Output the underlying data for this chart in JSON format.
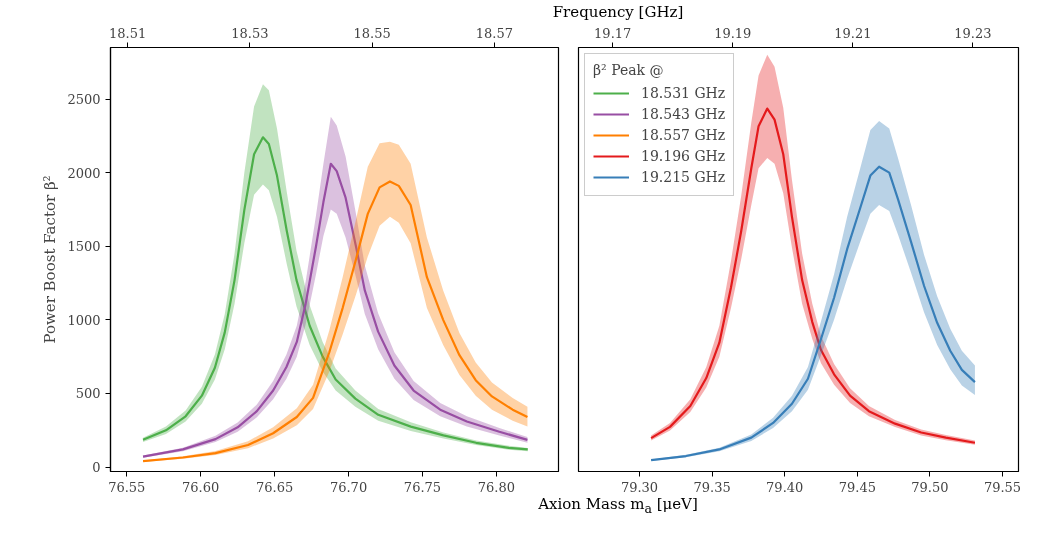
{
  "chart_data": [
    {
      "type": "line",
      "xlabel": "Axion Mass m$_{a}$ [μeV]",
      "x2label": "Frequency [GHz]",
      "ylabel": "Power Boost Factor β²",
      "legend": "right",
      "xlim": [
        76.539,
        76.842
      ],
      "xticks": [
        76.55,
        {
          "value": 76.6,
          "label": "76.60"
        },
        76.65,
        {
          "value": 76.7,
          "label": "76.70"
        },
        76.75,
        {
          "value": 76.8,
          "label": "76.80"
        }
      ],
      "x2lim": [
        18.5072,
        18.5805
      ],
      "x2ticks": [
        18.51,
        18.53,
        18.55,
        18.57
      ],
      "ylim": [
        -30,
        2850
      ],
      "yticks": [
        0,
        500,
        1000,
        1500,
        2000,
        2500
      ],
      "series": [
        {
          "name": "18.531 GHz",
          "color": "#4daf4a",
          "x": [
            76.561,
            76.5765,
            76.5898,
            76.6008,
            76.6096,
            76.6163,
            76.6229,
            76.6295,
            76.6361,
            76.6421,
            76.6461,
            76.6516,
            76.6582,
            76.6648,
            76.6737,
            76.6825,
            76.6913,
            76.7046,
            76.7201,
            76.7421,
            76.7642,
            76.7863,
            76.8084,
            76.8212
          ],
          "values": [
            185,
            250,
            345,
            485,
            675,
            915,
            1270,
            1745,
            2125,
            2240,
            2195,
            1980,
            1605,
            1270,
            960,
            750,
            595,
            465,
            355,
            275,
            215,
            165,
            130,
            120
          ],
          "upper": [
            200,
            275,
            385,
            545,
            765,
            1040,
            1450,
            2000,
            2450,
            2600,
            2560,
            2300,
            1870,
            1470,
            1100,
            850,
            670,
            520,
            395,
            305,
            235,
            180,
            145,
            130
          ],
          "lower": [
            170,
            225,
            310,
            430,
            595,
            800,
            1110,
            1520,
            1850,
            1920,
            1880,
            1700,
            1380,
            1090,
            830,
            650,
            520,
            410,
            315,
            245,
            195,
            150,
            118,
            108
          ]
        },
        {
          "name": "18.543 GHz",
          "color": "#984ea3",
          "x": [
            76.561,
            76.588,
            76.61,
            76.625,
            76.638,
            76.649,
            76.658,
            76.665,
            76.671,
            76.678,
            76.683,
            76.688,
            76.692,
            76.698,
            76.705,
            76.711,
            76.72,
            76.731,
            76.744,
            76.762,
            76.78,
            76.802,
            76.821
          ],
          "values": [
            71,
            120,
            190,
            270,
            380,
            520,
            680,
            850,
            1110,
            1500,
            1800,
            2060,
            2010,
            1830,
            1500,
            1200,
            920,
            690,
            520,
            390,
            310,
            240,
            185
          ],
          "upper": [
            78,
            132,
            212,
            302,
            425,
            585,
            765,
            960,
            1260,
            1710,
            2060,
            2380,
            2320,
            2110,
            1720,
            1370,
            1045,
            780,
            585,
            435,
            345,
            265,
            205
          ],
          "lower": [
            64,
            108,
            170,
            240,
            338,
            460,
            600,
            750,
            970,
            1310,
            1570,
            1750,
            1720,
            1560,
            1290,
            1040,
            800,
            600,
            455,
            345,
            275,
            215,
            165
          ]
        },
        {
          "name": "18.557 GHz",
          "color": "#ff7f00",
          "x": [
            76.561,
            76.588,
            76.61,
            76.632,
            76.649,
            76.665,
            76.676,
            76.687,
            76.696,
            76.705,
            76.713,
            76.721,
            76.728,
            76.734,
            76.742,
            76.753,
            76.764,
            76.775,
            76.786,
            76.797,
            76.811,
            76.821
          ],
          "values": [
            40,
            65,
            95,
            150,
            230,
            340,
            470,
            780,
            1080,
            1410,
            1720,
            1900,
            1940,
            1910,
            1780,
            1290,
            1000,
            760,
            590,
            480,
            390,
            340
          ],
          "upper": [
            45,
            74,
            110,
            175,
            270,
            400,
            560,
            930,
            1290,
            1680,
            2040,
            2200,
            2210,
            2190,
            2060,
            1560,
            1200,
            910,
            710,
            575,
            470,
            410
          ],
          "lower": [
            35,
            56,
            82,
            128,
            195,
            285,
            395,
            650,
            900,
            1170,
            1430,
            1640,
            1700,
            1660,
            1520,
            1080,
            830,
            625,
            485,
            390,
            315,
            275
          ]
        }
      ]
    },
    {
      "type": "line",
      "tick_labels": "x",
      "legend": "top left",
      "legend_title": "β² Peak @",
      "xlim": [
        79.258,
        79.561
      ],
      "xticks": [
        {
          "value": 79.3,
          "label": "79.30"
        },
        79.35,
        {
          "value": 79.4,
          "label": "79.40"
        },
        79.45,
        {
          "value": 79.5,
          "label": "79.50"
        },
        79.55
      ],
      "x2lim": [
        19.1643,
        19.2376
      ],
      "x2ticks": [
        19.17,
        19.19,
        19.21,
        19.23
      ],
      "ylim": [
        -30,
        2850
      ],
      "series": [
        {
          "name": "19.196 GHz",
          "color": "#e41a1c",
          "x": [
            79.308,
            79.321,
            79.335,
            79.346,
            79.355,
            79.363,
            79.37,
            79.377,
            79.382,
            79.388,
            79.393,
            79.399,
            79.405,
            79.412,
            79.419,
            79.425,
            79.434,
            79.445,
            79.458,
            79.476,
            79.494,
            79.511,
            79.531
          ],
          "values": [
            197,
            273,
            415,
            605,
            845,
            1220,
            1600,
            2030,
            2315,
            2435,
            2360,
            2125,
            1700,
            1270,
            985,
            795,
            630,
            485,
            380,
            295,
            235,
            200,
            165
          ],
          "upper": [
            215,
            300,
            460,
            680,
            960,
            1400,
            1840,
            2340,
            2660,
            2800,
            2720,
            2440,
            1950,
            1450,
            1110,
            890,
            700,
            535,
            415,
            320,
            255,
            218,
            180
          ],
          "lower": [
            180,
            248,
            375,
            540,
            750,
            1080,
            1410,
            1780,
            2030,
            2100,
            2060,
            1860,
            1490,
            1110,
            870,
            705,
            560,
            435,
            345,
            272,
            215,
            183,
            152
          ]
        },
        {
          "name": "19.215 GHz",
          "color": "#377eb8",
          "x": [
            79.308,
            79.332,
            79.355,
            79.377,
            79.392,
            79.405,
            79.416,
            79.425,
            79.434,
            79.443,
            79.452,
            79.459,
            79.465,
            79.472,
            79.478,
            79.487,
            79.496,
            79.505,
            79.514,
            79.522,
            79.531
          ],
          "values": [
            47,
            75,
            120,
            200,
            300,
            430,
            600,
            870,
            1150,
            1480,
            1760,
            1980,
            2040,
            2000,
            1820,
            1530,
            1230,
            980,
            790,
            660,
            577
          ],
          "upper": [
            52,
            83,
            132,
            222,
            335,
            485,
            680,
            990,
            1310,
            1700,
            2030,
            2290,
            2350,
            2300,
            2100,
            1780,
            1440,
            1160,
            940,
            790,
            690
          ],
          "lower": [
            42,
            67,
            108,
            178,
            265,
            380,
            525,
            760,
            1000,
            1280,
            1530,
            1720,
            1780,
            1740,
            1580,
            1320,
            1050,
            830,
            665,
            555,
            490
          ]
        }
      ]
    }
  ]
}
